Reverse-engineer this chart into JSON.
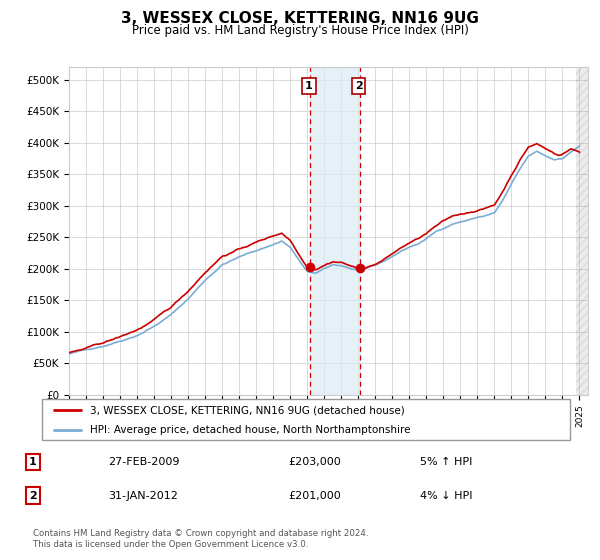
{
  "title": "3, WESSEX CLOSE, KETTERING, NN16 9UG",
  "subtitle": "Price paid vs. HM Land Registry's House Price Index (HPI)",
  "legend_line1": "3, WESSEX CLOSE, KETTERING, NN16 9UG (detached house)",
  "legend_line2": "HPI: Average price, detached house, North Northamptonshire",
  "footer": "Contains HM Land Registry data © Crown copyright and database right 2024.\nThis data is licensed under the Open Government Licence v3.0.",
  "sale1_date": "27-FEB-2009",
  "sale1_price": "£203,000",
  "sale1_hpi": "5% ↑ HPI",
  "sale2_date": "31-JAN-2012",
  "sale2_price": "£201,000",
  "sale2_hpi": "4% ↓ HPI",
  "sale1_x": 2009.15,
  "sale1_y": 203000,
  "sale2_x": 2012.08,
  "sale2_y": 201000,
  "hpi_color": "#7aadd4",
  "sale_color": "#cc0000",
  "highlight_color": "#daeaf5",
  "highlight_alpha": 0.7,
  "ylim": [
    0,
    520000
  ],
  "xlim_start": 1995.0,
  "xlim_end": 2025.5,
  "background_color": "#ffffff",
  "grid_color": "#cccccc"
}
